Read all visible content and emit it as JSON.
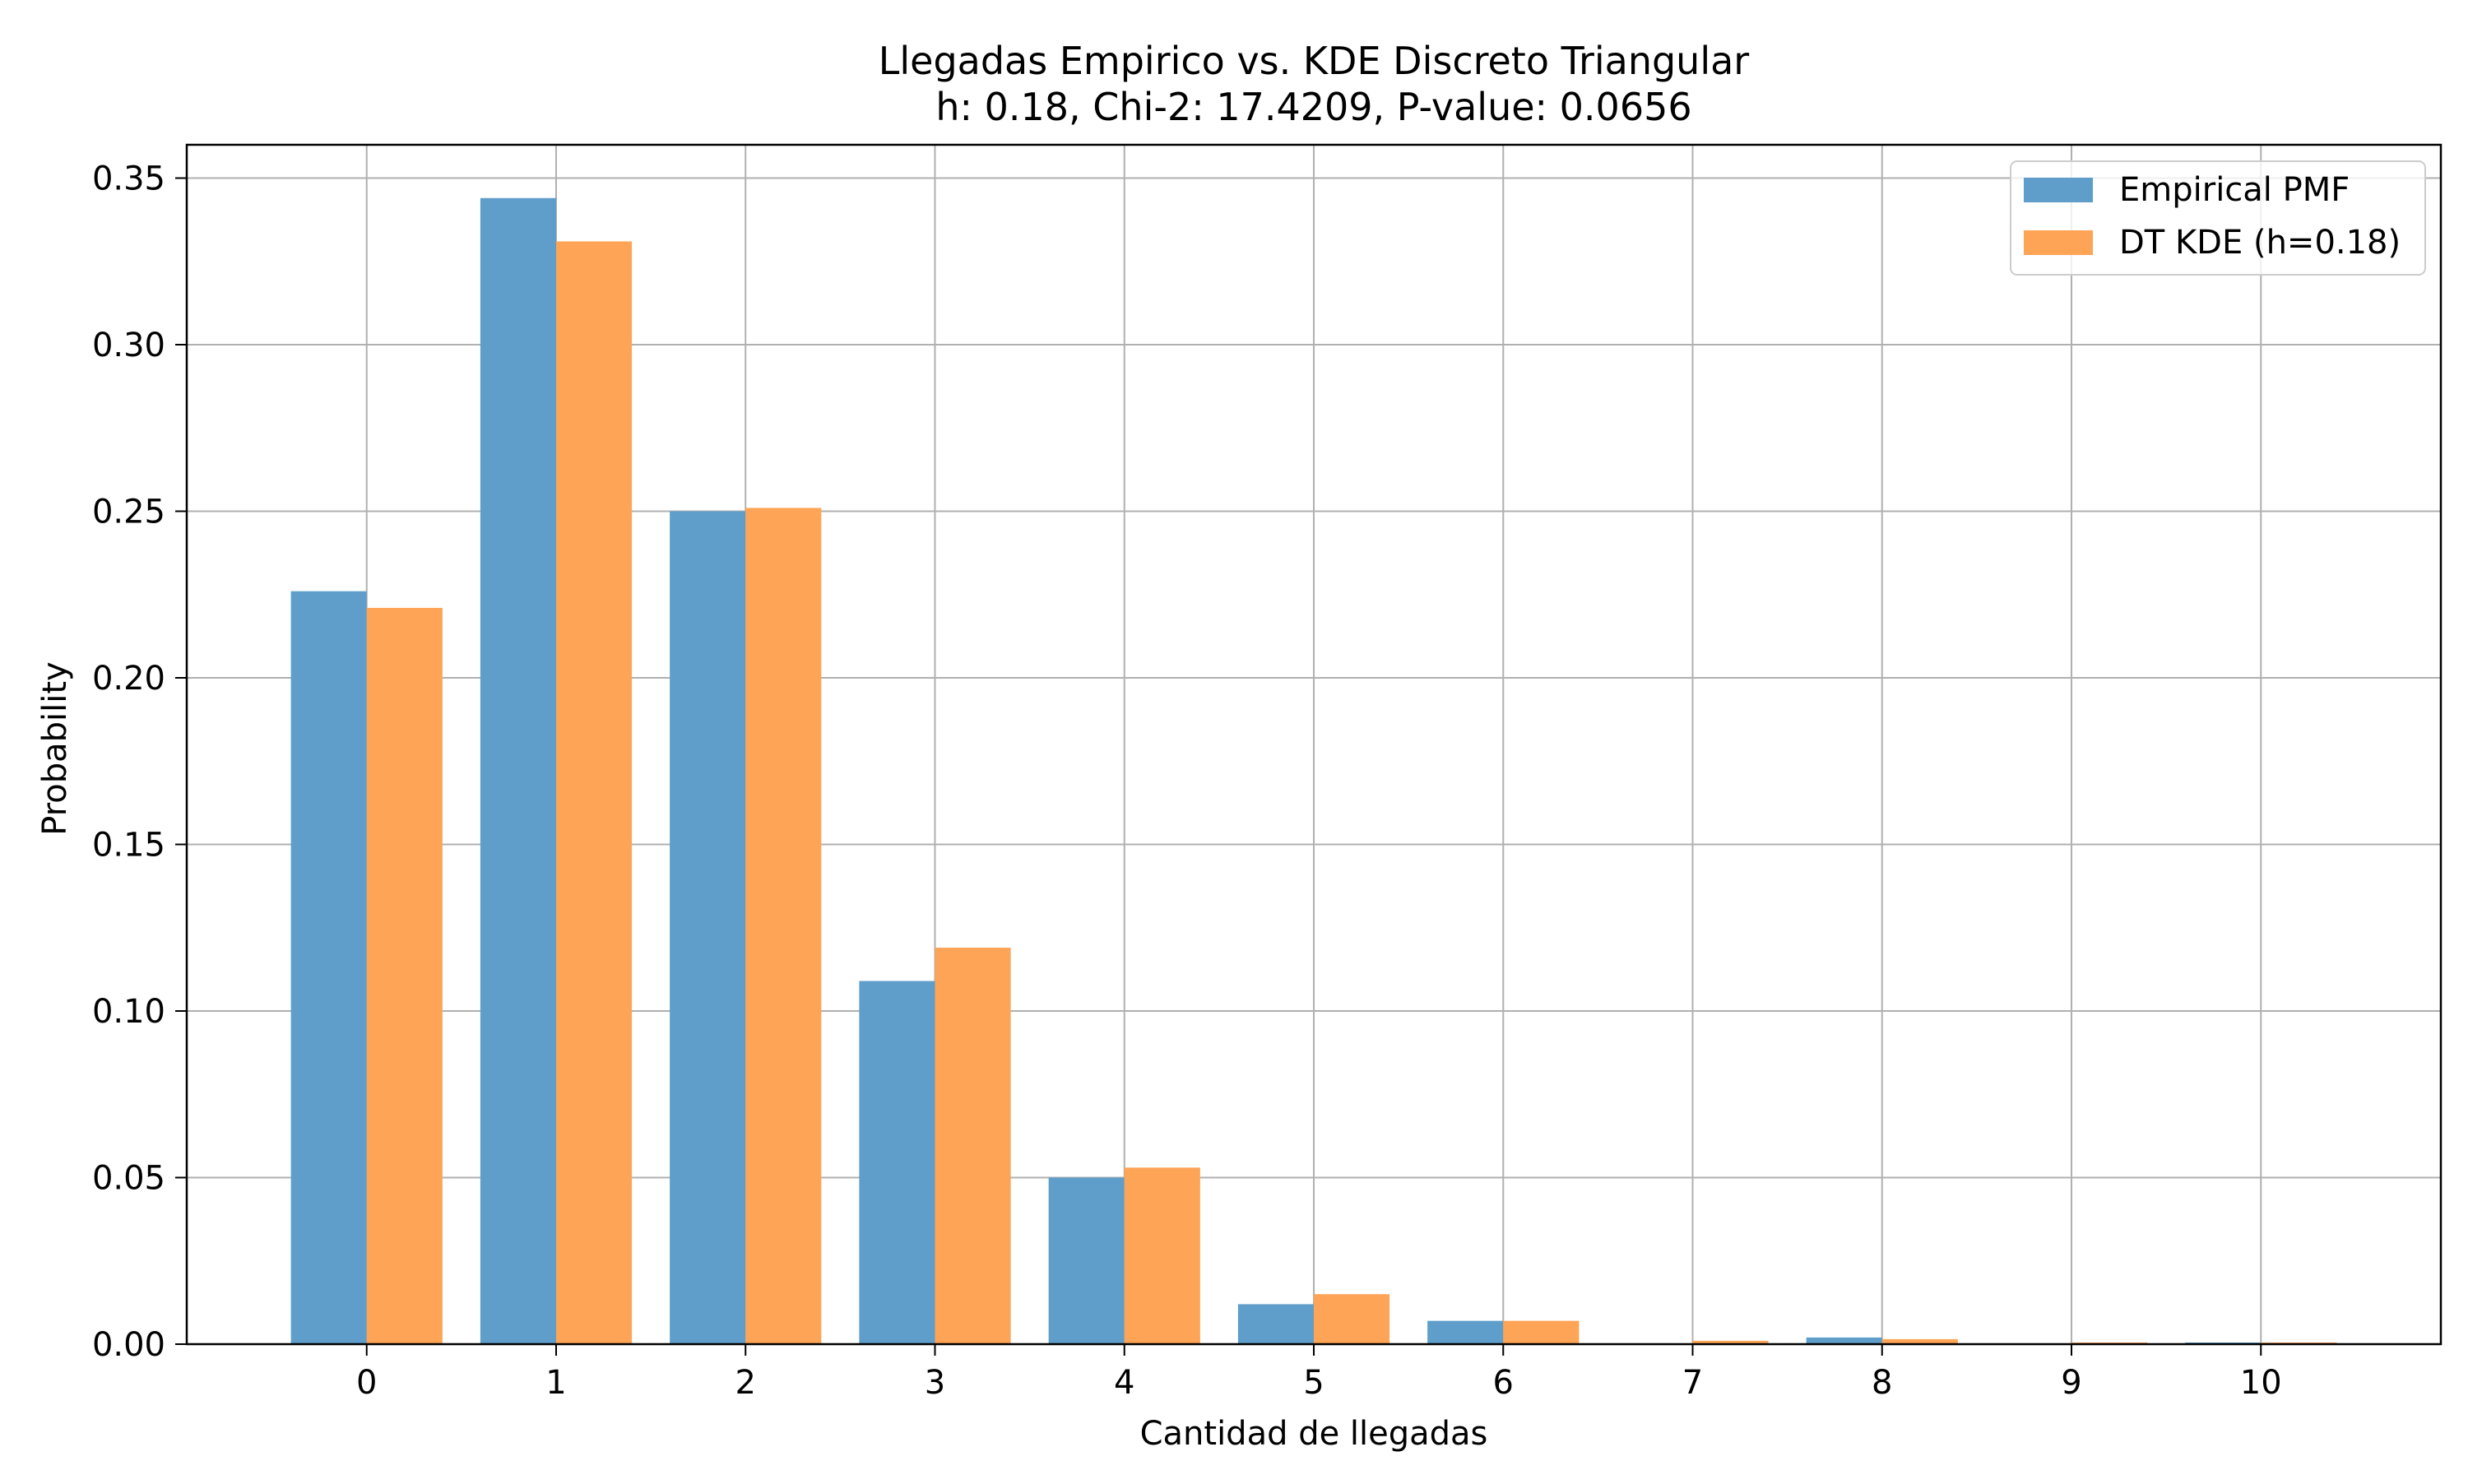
{
  "chart_data": {
    "type": "bar",
    "title": "Llegadas Empirico vs. KDE Discreto Triangular",
    "subtitle": "h: 0.18, Chi-2: 17.4209, P-value: 0.0656",
    "xlabel": "Cantidad de llegadas",
    "ylabel": "Probability",
    "categories": [
      "0",
      "1",
      "2",
      "3",
      "4",
      "5",
      "6",
      "7",
      "8",
      "9",
      "10"
    ],
    "series": [
      {
        "name": "Empirical PMF",
        "color": "#5f9ecb",
        "values": [
          0.226,
          0.344,
          0.25,
          0.109,
          0.05,
          0.012,
          0.007,
          0.0,
          0.002,
          0.0,
          0.0005
        ]
      },
      {
        "name": "DT KDE (h=0.18)",
        "color": "#fea456",
        "values": [
          0.221,
          0.331,
          0.251,
          0.119,
          0.053,
          0.015,
          0.007,
          0.001,
          0.0015,
          0.0005,
          0.0005
        ]
      }
    ],
    "xlim": [
      -0.95,
      10.95
    ],
    "ylim": [
      0,
      0.36
    ],
    "yticks": [
      "0.00",
      "0.05",
      "0.10",
      "0.15",
      "0.20",
      "0.25",
      "0.30",
      "0.35"
    ],
    "ytick_values": [
      0,
      0.05,
      0.1,
      0.15,
      0.2,
      0.25,
      0.3,
      0.35
    ],
    "grid": true,
    "legend_position": "top-right"
  }
}
